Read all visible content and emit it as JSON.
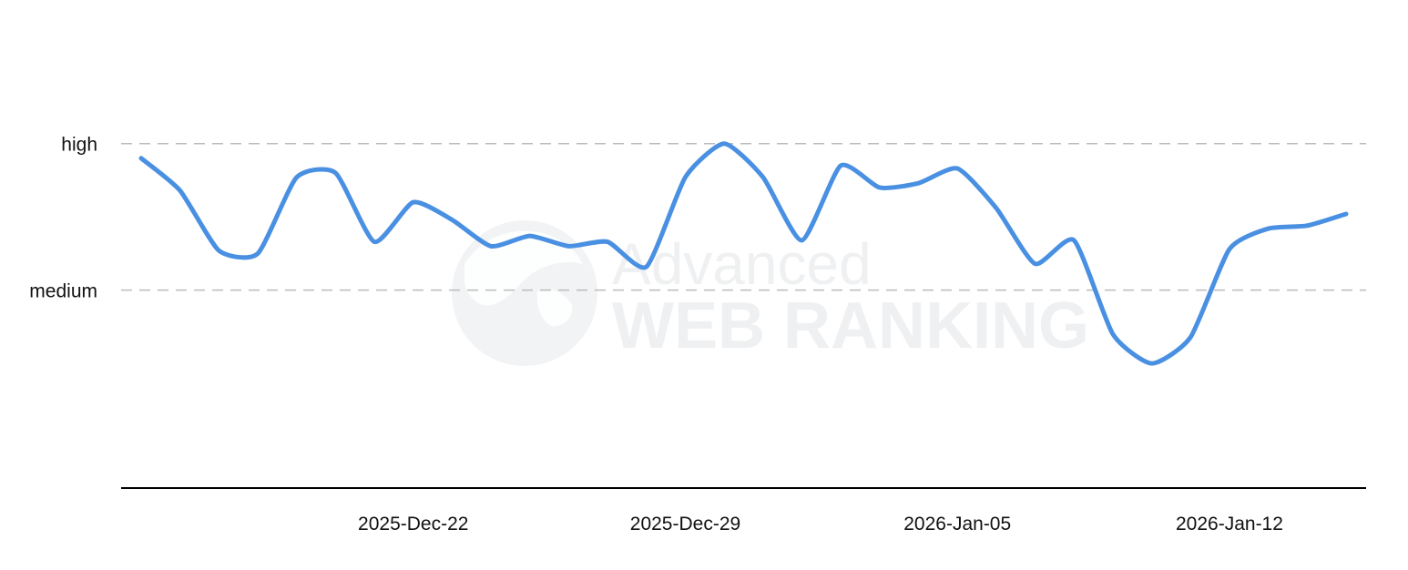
{
  "chart_data": {
    "type": "line",
    "x_tick_labels": [
      "2025-Dec-22",
      "2025-Dec-29",
      "2026-Jan-05",
      "2026-Jan-12"
    ],
    "x_tick_dates": [
      "2025-12-22",
      "2025-12-29",
      "2026-01-05",
      "2026-01-12"
    ],
    "x_range": [
      "2025-12-15",
      "2026-01-15"
    ],
    "y_levels": [
      {
        "label": "medium",
        "value": 1
      },
      {
        "label": "high",
        "value": 2
      }
    ],
    "ylim": [
      -0.35,
      2.7
    ],
    "grid": "horizontal dashed at level lines",
    "series": [
      {
        "color": "#4a90e2",
        "x": [
          "2025-12-15",
          "2025-12-16",
          "2025-12-17",
          "2025-12-18",
          "2025-12-19",
          "2025-12-20",
          "2025-12-21",
          "2025-12-22",
          "2025-12-23",
          "2025-12-24",
          "2025-12-25",
          "2025-12-26",
          "2025-12-27",
          "2025-12-28",
          "2025-12-29",
          "2025-12-30",
          "2025-12-31",
          "2026-01-01",
          "2026-01-02",
          "2026-01-03",
          "2026-01-04",
          "2026-01-05",
          "2026-01-06",
          "2026-01-07",
          "2026-01-08",
          "2026-01-09",
          "2026-01-10",
          "2026-01-11",
          "2026-01-12",
          "2026-01-13",
          "2026-01-14",
          "2026-01-15"
        ],
        "y": [
          1.9,
          1.68,
          1.27,
          1.25,
          1.77,
          1.8,
          1.33,
          1.6,
          1.48,
          1.3,
          1.37,
          1.3,
          1.33,
          1.16,
          1.77,
          2.0,
          1.77,
          1.34,
          1.85,
          1.7,
          1.73,
          1.83,
          1.56,
          1.18,
          1.34,
          0.7,
          0.5,
          0.68,
          1.28,
          1.42,
          1.44,
          1.52
        ]
      }
    ]
  },
  "watermark": {
    "line1": "Advanced",
    "line2": "WEB RANKING"
  }
}
